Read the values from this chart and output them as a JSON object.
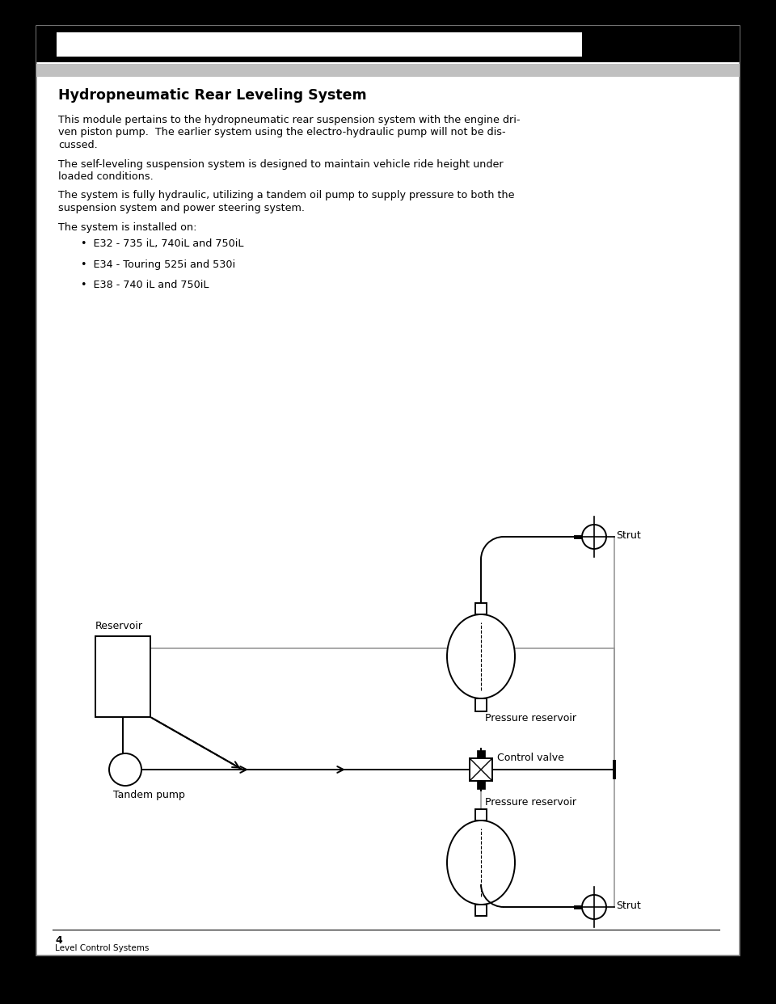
{
  "title": "Hydropneumatic Rear Leveling System",
  "para1_lines": [
    "This module pertains to the hydropneumatic rear suspension system with the engine dri-",
    "ven piston pump.  The earlier system using the electro-hydraulic pump will not be dis-",
    "cussed."
  ],
  "para2_lines": [
    "The self-leveling suspension system is designed to maintain vehicle ride height under",
    "loaded conditions."
  ],
  "para3_lines": [
    "The system is fully hydraulic, utilizing a tandem oil pump to supply pressure to both the",
    "suspension system and power steering system."
  ],
  "para4": "The system is installed on:",
  "bullets": [
    "E32 - 735 iL, 740iL and 750iL",
    "E34 - Touring 525i and 530i",
    "E38 - 740 iL and 750iL"
  ],
  "page_number": "4",
  "footer": "Level Control Systems",
  "diagram_label_reservoir": "Reservoir",
  "diagram_label_tandem_pump": "Tandem pump",
  "diagram_label_pressure_res_top": "Pressure reservoir",
  "diagram_label_control_valve": "Control valve",
  "diagram_label_pressure_res_bot": "Pressure reservoir",
  "diagram_label_strut_top": "Strut",
  "diagram_label_strut_bot": "Strut"
}
